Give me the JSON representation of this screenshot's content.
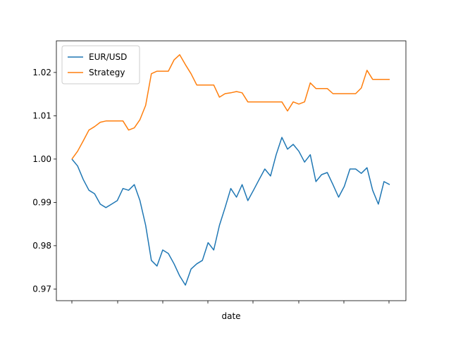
{
  "chart_data": {
    "type": "line",
    "xlabel": "date",
    "ylim": [
      0.9673,
      1.0273
    ],
    "yticks": [
      0.97,
      0.98,
      0.99,
      {
        "value": 1,
        "label": "1.00"
      },
      1.01,
      1.02
    ],
    "legend": "upper left",
    "series": [
      {
        "name": "EUR/USD",
        "color": "#1f77b4",
        "values": [
          1.0,
          0.9984,
          0.9953,
          0.9928,
          0.992,
          0.9896,
          0.9888,
          0.9896,
          0.9904,
          0.9932,
          0.9928,
          0.9941,
          0.9904,
          0.9847,
          0.9766,
          0.9753,
          0.979,
          0.9782,
          0.9758,
          0.973,
          0.9709,
          0.9746,
          0.9758,
          0.9766,
          0.9807,
          0.979,
          0.9847,
          0.9888,
          0.9932,
          0.9912,
          0.9941,
          0.9904,
          0.9928,
          0.9953,
          0.9977,
          0.9961,
          1.001,
          1.005,
          1.0023,
          1.0034,
          1.0018,
          0.9993,
          1.001,
          0.9948,
          0.9964,
          0.9969,
          0.9941,
          0.9912,
          0.9937,
          0.9977,
          0.9977,
          0.9967,
          0.998,
          0.9928,
          0.9896,
          0.9948,
          0.9941
        ]
      },
      {
        "name": "Strategy",
        "color": "#ff7f0e",
        "values": [
          1.0,
          1.0018,
          1.0042,
          1.0067,
          1.0075,
          1.0085,
          1.0088,
          1.0088,
          1.0088,
          1.0088,
          1.0067,
          1.0072,
          1.0091,
          1.0124,
          1.0197,
          1.0203,
          1.0203,
          1.0203,
          1.0229,
          1.0241,
          1.0218,
          1.0197,
          1.0171,
          1.0171,
          1.0171,
          1.0171,
          1.0143,
          1.0151,
          1.0153,
          1.0156,
          1.0153,
          1.0132,
          1.0132,
          1.0132,
          1.0132,
          1.0132,
          1.0132,
          1.0132,
          1.0111,
          1.0132,
          1.0127,
          1.0132,
          1.0176,
          1.0163,
          1.0163,
          1.0163,
          1.0151,
          1.0151,
          1.0151,
          1.0151,
          1.0151,
          1.0164,
          1.0205,
          1.0184,
          1.0184,
          1.0184,
          1.0184
        ]
      }
    ]
  }
}
